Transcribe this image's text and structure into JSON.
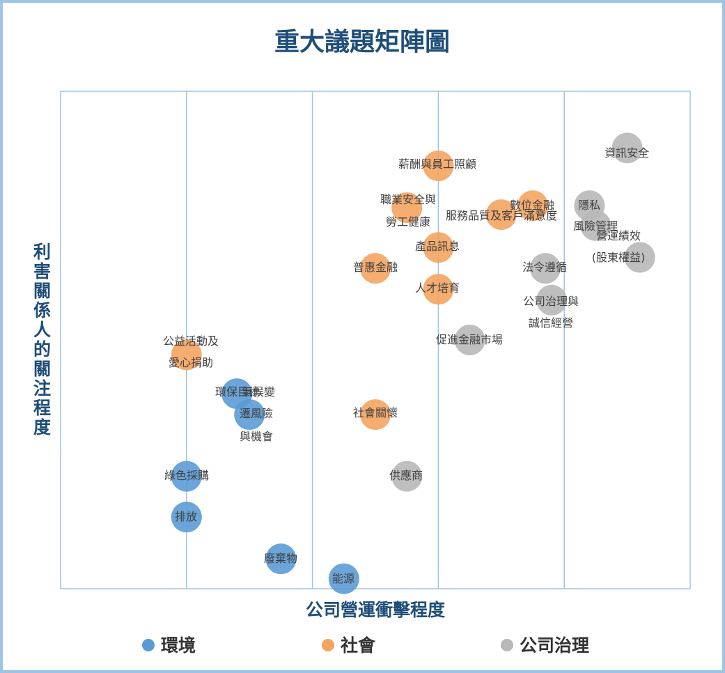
{
  "chart_data": {
    "type": "scatter",
    "title": "重大議題矩陣圖",
    "xlabel": "公司營運衝擊程度",
    "ylabel": "利害關係人的關注程度",
    "xlim": [
      0,
      5
    ],
    "ylim": [
      0,
      5
    ],
    "grid": true,
    "legend_position": "bottom",
    "series": [
      {
        "name": "環境",
        "color": "#5b9bd5",
        "points": [
          {
            "label": "氣候變遷風險與機會",
            "x": 1.5,
            "y": 1.75
          },
          {
            "label": "環保目標",
            "x": 1.4,
            "y": 1.96
          },
          {
            "label": "綠色採購",
            "x": 1.0,
            "y": 1.13
          },
          {
            "label": "排放",
            "x": 1.0,
            "y": 0.72
          },
          {
            "label": "廢棄物",
            "x": 1.75,
            "y": 0.3
          },
          {
            "label": "能源",
            "x": 2.25,
            "y": 0.1
          }
        ]
      },
      {
        "name": "社會",
        "color": "#f4a460",
        "points": [
          {
            "label": "薪酬與員工照顧",
            "x": 3.0,
            "y": 4.25
          },
          {
            "label": "職業安全與勞工健康",
            "x": 2.75,
            "y": 3.83
          },
          {
            "label": "數位金融",
            "x": 3.75,
            "y": 3.85
          },
          {
            "label": "服務品質及客戶滿意度",
            "x": 3.5,
            "y": 3.76
          },
          {
            "label": "產品訊息",
            "x": 3.0,
            "y": 3.43
          },
          {
            "label": "普惠金融",
            "x": 2.5,
            "y": 3.22
          },
          {
            "label": "人才培育",
            "x": 3.0,
            "y": 3.01
          },
          {
            "label": "公益活動及愛心捐助",
            "x": 1.0,
            "y": 2.35
          },
          {
            "label": "社會關懷",
            "x": 2.5,
            "y": 1.75
          }
        ]
      },
      {
        "name": "公司治理",
        "color": "#b8b8b8",
        "points": [
          {
            "label": "資訊安全",
            "x": 4.5,
            "y": 4.43
          },
          {
            "label": "隱私",
            "x": 4.2,
            "y": 3.85
          },
          {
            "label": "風險管理",
            "x": 4.25,
            "y": 3.65
          },
          {
            "label": "營運績效(股東權益)",
            "x": 4.6,
            "y": 3.33
          },
          {
            "label": "法令遵循",
            "x": 3.85,
            "y": 3.22
          },
          {
            "label": "公司治理與誠信經營",
            "x": 3.9,
            "y": 2.9
          },
          {
            "label": "促進金融市場",
            "x": 3.25,
            "y": 2.5
          },
          {
            "label": "供應商",
            "x": 2.75,
            "y": 1.13
          }
        ]
      }
    ]
  },
  "labels": {
    "title": "重大議題矩陣圖",
    "xlabel": "公司營運衝擊程度",
    "ylabel": "利害關係人的關注程度",
    "legend": [
      "環境",
      "社會",
      "公司治理"
    ],
    "points": {
      "gongyi_1": "公益活動及",
      "gongyi_2": "愛心捐助",
      "huanbao": "環保目標",
      "qihou_1": "氣候變",
      "qihou_2": "遷風險",
      "qihou_3": "與機會",
      "lvse": "綠色採購",
      "paifang": "排放",
      "feiqi": "廢棄物",
      "nengyuan": "能源",
      "xinchou": "薪酬與員工照顧",
      "zhiye_1": "職業安全與",
      "zhiye_2": "勞工健康",
      "shuwei": "數位金融",
      "fuwu": "服務品質及客戶滿意度",
      "chanpin": "產品訊息",
      "puhui": "普惠金融",
      "rencai": "人才培育",
      "shehui": "社會關懷",
      "zixun": "資訊安全",
      "yinsi": "隱私",
      "fengxian": "風險管理",
      "yingyun_1": "營運績效",
      "yingyun_2": "(股東權益)",
      "faling": "法令遵循",
      "zhili_1": "公司治理與",
      "zhili_2": "誠信經營",
      "cujin": "促進金融市場",
      "gongying": "供應商"
    }
  }
}
